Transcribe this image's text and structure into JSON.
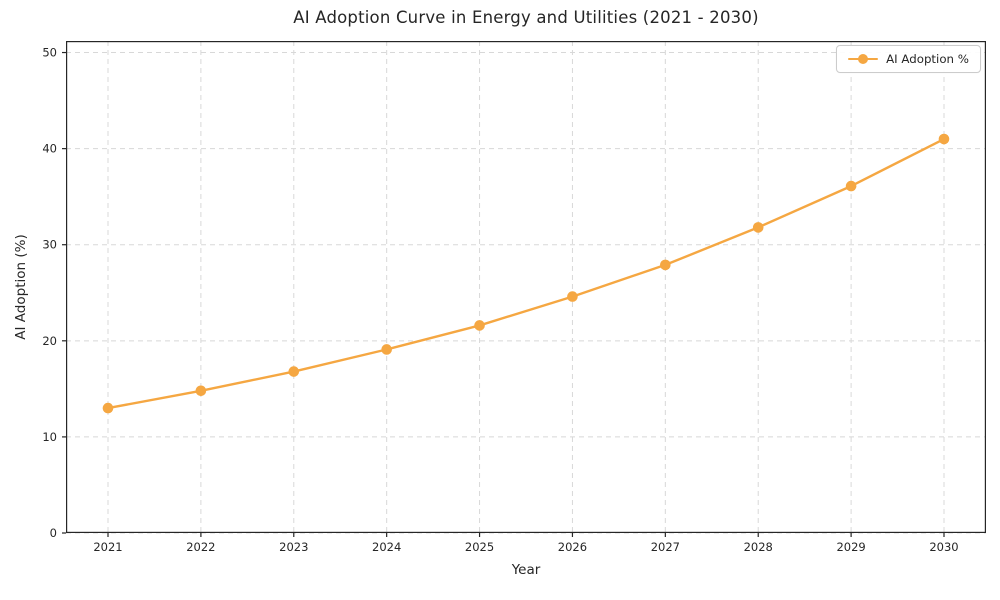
{
  "figure": {
    "background": "#ffffff"
  },
  "chart_data": {
    "type": "line",
    "title": "AI Adoption Curve in Energy and Utilities (2021 - 2030)",
    "xlabel": "Year",
    "ylabel": "AI Adoption (%)",
    "categories": [
      "2021",
      "2022",
      "2023",
      "2024",
      "2025",
      "2026",
      "2027",
      "2028",
      "2029",
      "2030"
    ],
    "series": [
      {
        "name": "AI Adoption %",
        "color": "#F5A742",
        "marker": "circle",
        "values": [
          13.0,
          14.8,
          16.8,
          19.1,
          21.6,
          24.6,
          27.9,
          31.8,
          36.1,
          41.0
        ]
      }
    ],
    "ylim": [
      0,
      51.2
    ],
    "yticks": [
      0,
      10,
      20,
      30,
      40,
      50
    ],
    "grid": true,
    "grid_style": "dashed",
    "grid_color": "#D8D8D8",
    "axis_color": "#262626",
    "text_color": "#262626",
    "legend": {
      "position": "upper-right"
    }
  }
}
